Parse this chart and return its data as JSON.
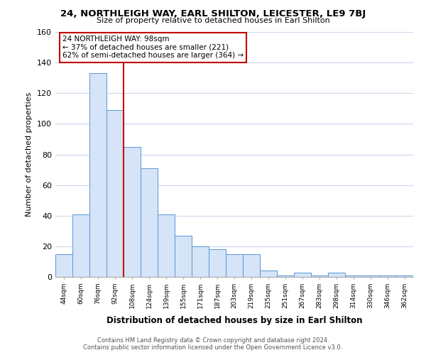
{
  "title": "24, NORTHLEIGH WAY, EARL SHILTON, LEICESTER, LE9 7BJ",
  "subtitle": "Size of property relative to detached houses in Earl Shilton",
  "xlabel": "Distribution of detached houses by size in Earl Shilton",
  "ylabel": "Number of detached properties",
  "bar_labels": [
    "44sqm",
    "60sqm",
    "76sqm",
    "92sqm",
    "108sqm",
    "124sqm",
    "139sqm",
    "155sqm",
    "171sqm",
    "187sqm",
    "203sqm",
    "219sqm",
    "235sqm",
    "251sqm",
    "267sqm",
    "283sqm",
    "298sqm",
    "314sqm",
    "330sqm",
    "346sqm",
    "362sqm"
  ],
  "bar_values": [
    15,
    41,
    133,
    109,
    85,
    71,
    41,
    27,
    20,
    18,
    15,
    15,
    4,
    1,
    3,
    1,
    3,
    1,
    1,
    1,
    1
  ],
  "bar_color": "#d6e4f7",
  "bar_edge_color": "#5a96d8",
  "vline_x": 3.5,
  "vline_color": "#cc0000",
  "ylim": [
    0,
    160
  ],
  "yticks": [
    0,
    20,
    40,
    60,
    80,
    100,
    120,
    140,
    160
  ],
  "annotation_title": "24 NORTHLEIGH WAY: 98sqm",
  "annotation_line1": "← 37% of detached houses are smaller (221)",
  "annotation_line2": "62% of semi-detached houses are larger (364) →",
  "annotation_box_color": "#ffffff",
  "annotation_box_edge": "#c00000",
  "footer_line1": "Contains HM Land Registry data © Crown copyright and database right 2024.",
  "footer_line2": "Contains public sector information licensed under the Open Government Licence v3.0.",
  "background_color": "#ffffff",
  "grid_color": "#ccd8ec"
}
